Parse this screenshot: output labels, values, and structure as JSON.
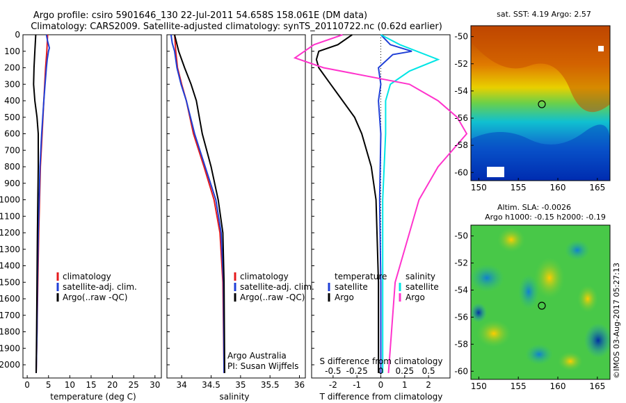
{
  "title": {
    "line1": "Argo profile: csiro 5901646_130 22-Jul-2011 54.658S 158.061E (DM data)",
    "line2": "Climatology: CARS2009. Satellite-adjusted climatology: synTS_20110722.nc (0.62d earlier)"
  },
  "colors": {
    "clim": "#e41a1c",
    "sat": "#1f3fd6",
    "argo": "#000000",
    "sal_sat": "#00e5e5",
    "sal_argo": "#ff33cc"
  },
  "chart_data": [
    {
      "type": "line",
      "name": "temperature-profile",
      "xlabel": "temperature (deg C)",
      "ylabel": "",
      "xlim": [
        -1,
        31.5
      ],
      "ylim": [
        2080,
        0
      ],
      "xticks": [
        "0",
        "5",
        "10",
        "15",
        "20",
        "25",
        "30"
      ],
      "yticks": [
        "0",
        "100",
        "200",
        "300",
        "400",
        "500",
        "600",
        "700",
        "800",
        "900",
        "1000",
        "1100",
        "1200",
        "1300",
        "1400",
        "1500",
        "1600",
        "1700",
        "1800",
        "1900",
        "2000"
      ],
      "legend": [
        "climatology",
        "satellite-adj. clim.",
        "Argo(..raw -QC)"
      ],
      "series": [
        {
          "name": "climatology",
          "points": [
            [
              4.8,
              0
            ],
            [
              4.6,
              100
            ],
            [
              4.3,
              200
            ],
            [
              3.9,
              400
            ],
            [
              3.5,
              600
            ],
            [
              3.1,
              800
            ],
            [
              2.9,
              1000
            ],
            [
              2.7,
              1200
            ],
            [
              2.5,
              1500
            ],
            [
              2.3,
              1800
            ],
            [
              2.1,
              2050
            ]
          ]
        },
        {
          "name": "satellite-adj. clim.",
          "points": [
            [
              4.5,
              0
            ],
            [
              4.8,
              40
            ],
            [
              5.2,
              80
            ],
            [
              5.0,
              100
            ],
            [
              4.7,
              150
            ],
            [
              4.5,
              200
            ],
            [
              4.2,
              300
            ],
            [
              3.9,
              400
            ],
            [
              3.4,
              600
            ],
            [
              3.0,
              800
            ],
            [
              2.8,
              1000
            ],
            [
              2.6,
              1200
            ],
            [
              2.4,
              1500
            ],
            [
              2.3,
              1800
            ],
            [
              2.1,
              2050
            ]
          ]
        },
        {
          "name": "Argo(..raw -QC)",
          "points": [
            [
              2.0,
              0
            ],
            [
              1.8,
              100
            ],
            [
              1.6,
              200
            ],
            [
              1.5,
              300
            ],
            [
              1.8,
              400
            ],
            [
              2.3,
              500
            ],
            [
              2.6,
              600
            ],
            [
              2.6,
              800
            ],
            [
              2.5,
              1000
            ],
            [
              2.4,
              1200
            ],
            [
              2.3,
              1500
            ],
            [
              2.2,
              1800
            ],
            [
              2.1,
              2050
            ]
          ]
        }
      ]
    },
    {
      "type": "line",
      "name": "salinity-profile",
      "xlabel": "salinity",
      "xlim": [
        33.75,
        36.1
      ],
      "ylim": [
        2080,
        0
      ],
      "xticks": [
        "34",
        "34.5",
        "35",
        "35.5",
        "36"
      ],
      "legend": [
        "climatology",
        "satellite-adj. clim.",
        "Argo(..raw -QC)"
      ],
      "annotations": [
        "Argo Australia",
        "PI: Susan Wijffels"
      ],
      "series": [
        {
          "name": "climatology",
          "points": [
            [
              33.88,
              0
            ],
            [
              33.9,
              100
            ],
            [
              33.93,
              200
            ],
            [
              34.0,
              300
            ],
            [
              34.08,
              400
            ],
            [
              34.2,
              600
            ],
            [
              34.38,
              800
            ],
            [
              34.55,
              1000
            ],
            [
              34.65,
              1200
            ],
            [
              34.7,
              1500
            ],
            [
              34.72,
              2050
            ]
          ]
        },
        {
          "name": "satellite-adj. clim.",
          "points": [
            [
              33.82,
              0
            ],
            [
              33.84,
              50
            ],
            [
              33.88,
              100
            ],
            [
              33.92,
              200
            ],
            [
              33.99,
              300
            ],
            [
              34.08,
              400
            ],
            [
              34.22,
              600
            ],
            [
              34.4,
              800
            ],
            [
              34.58,
              1000
            ],
            [
              34.67,
              1200
            ],
            [
              34.71,
              1500
            ],
            [
              34.72,
              2050
            ]
          ]
        },
        {
          "name": "Argo(..raw -QC)",
          "points": [
            [
              33.88,
              0
            ],
            [
              33.95,
              100
            ],
            [
              34.05,
              200
            ],
            [
              34.16,
              300
            ],
            [
              34.25,
              400
            ],
            [
              34.35,
              600
            ],
            [
              34.5,
              800
            ],
            [
              34.62,
              1000
            ],
            [
              34.7,
              1200
            ],
            [
              34.72,
              1500
            ],
            [
              34.73,
              2050
            ]
          ]
        }
      ]
    },
    {
      "type": "line",
      "name": "difference-profile",
      "xlabel": "T difference from climatology",
      "xlabel_top": "S difference from climatology",
      "xlim": [
        -2.9,
        2.9
      ],
      "ylim": [
        2080,
        0
      ],
      "xticks": [
        "-2",
        "-1",
        "0",
        "1",
        "2"
      ],
      "sticks": [
        "-0.5",
        "-0.25",
        "0",
        "0.25",
        "0.5"
      ],
      "legend_headers": [
        "temperature",
        "salinity"
      ],
      "legend": [
        "satellite",
        "Argo",
        "satellite",
        "Argo"
      ],
      "series": [
        {
          "name": "T satellite",
          "points": [
            [
              0,
              0
            ],
            [
              0.4,
              60
            ],
            [
              1.3,
              100
            ],
            [
              0.5,
              120
            ],
            [
              -0.1,
              200
            ],
            [
              0,
              300
            ],
            [
              -0.1,
              400
            ],
            [
              0,
              600
            ],
            [
              -0.05,
              1000
            ],
            [
              0,
              1500
            ],
            [
              0,
              2050
            ]
          ]
        },
        {
          "name": "T Argo",
          "points": [
            [
              -1.2,
              0
            ],
            [
              -1.8,
              60
            ],
            [
              -2.6,
              100
            ],
            [
              -2.7,
              150
            ],
            [
              -2.6,
              200
            ],
            [
              -2.1,
              300
            ],
            [
              -1.6,
              400
            ],
            [
              -1.1,
              500
            ],
            [
              -0.8,
              600
            ],
            [
              -0.4,
              800
            ],
            [
              -0.2,
              1000
            ],
            [
              -0.1,
              1500
            ],
            [
              -0.1,
              2050
            ]
          ]
        },
        {
          "name": "S satellite",
          "points": [
            [
              0,
              0
            ],
            [
              0.2,
              60
            ],
            [
              0.6,
              150
            ],
            [
              0.3,
              220
            ],
            [
              0.1,
              300
            ],
            [
              0.05,
              400
            ],
            [
              0.05,
              600
            ],
            [
              0.02,
              1000
            ],
            [
              0.02,
              1500
            ],
            [
              0.02,
              2050
            ]
          ]
        },
        {
          "name": "S Argo",
          "points": [
            [
              -0.4,
              0
            ],
            [
              -0.7,
              60
            ],
            [
              -0.9,
              140
            ],
            [
              -0.6,
              200
            ],
            [
              0.3,
              300
            ],
            [
              0.6,
              400
            ],
            [
              0.8,
              500
            ],
            [
              0.9,
              600
            ],
            [
              0.6,
              800
            ],
            [
              0.4,
              1000
            ],
            [
              0.3,
              1200
            ],
            [
              0.15,
              1500
            ],
            [
              0.08,
              2050
            ]
          ]
        }
      ]
    },
    {
      "type": "heatmap",
      "name": "sst-map",
      "title": "sat. SST: 4.19 Argo: 2.57",
      "xticks": [
        "150",
        "155",
        "160",
        "165"
      ],
      "yticks": [
        "-50",
        "-52",
        "-54",
        "-56",
        "-58",
        "-60"
      ]
    },
    {
      "type": "heatmap",
      "name": "sla-map",
      "title": "Altim. SLA: -0.0026",
      "subtitle": "Argo h1000: -0.15 h2000: -0.19",
      "xticks": [
        "150",
        "155",
        "160",
        "165"
      ],
      "yticks": [
        "-50",
        "-52",
        "-54",
        "-56",
        "-58",
        "-60"
      ]
    }
  ],
  "side_label": "©IMOS 03-Aug-2017 05:27:13"
}
